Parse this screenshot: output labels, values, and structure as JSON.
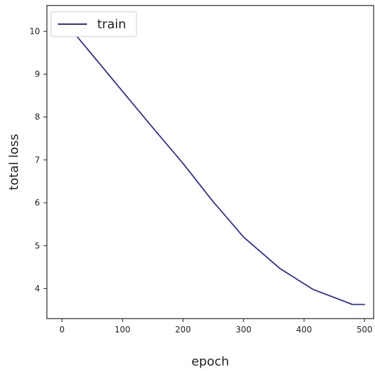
{
  "chart_data": {
    "type": "line",
    "xlabel": "epoch",
    "ylabel": "total loss",
    "xlim": [
      -25,
      515
    ],
    "ylim": [
      3.3,
      10.6
    ],
    "xticks": [
      0,
      100,
      200,
      300,
      400,
      500
    ],
    "yticks": [
      4,
      5,
      6,
      7,
      8,
      9,
      10
    ],
    "grid": false,
    "legend_position": "upper-left",
    "series": [
      {
        "name": "train",
        "color": "#2b2b9b",
        "x": [
          0,
          50,
          100,
          150,
          200,
          250,
          265,
          300,
          360,
          415,
          480,
          500
        ],
        "y": [
          10.3,
          9.45,
          8.6,
          7.75,
          6.92,
          6.02,
          5.78,
          5.2,
          4.47,
          3.98,
          3.63,
          3.63
        ]
      }
    ]
  }
}
